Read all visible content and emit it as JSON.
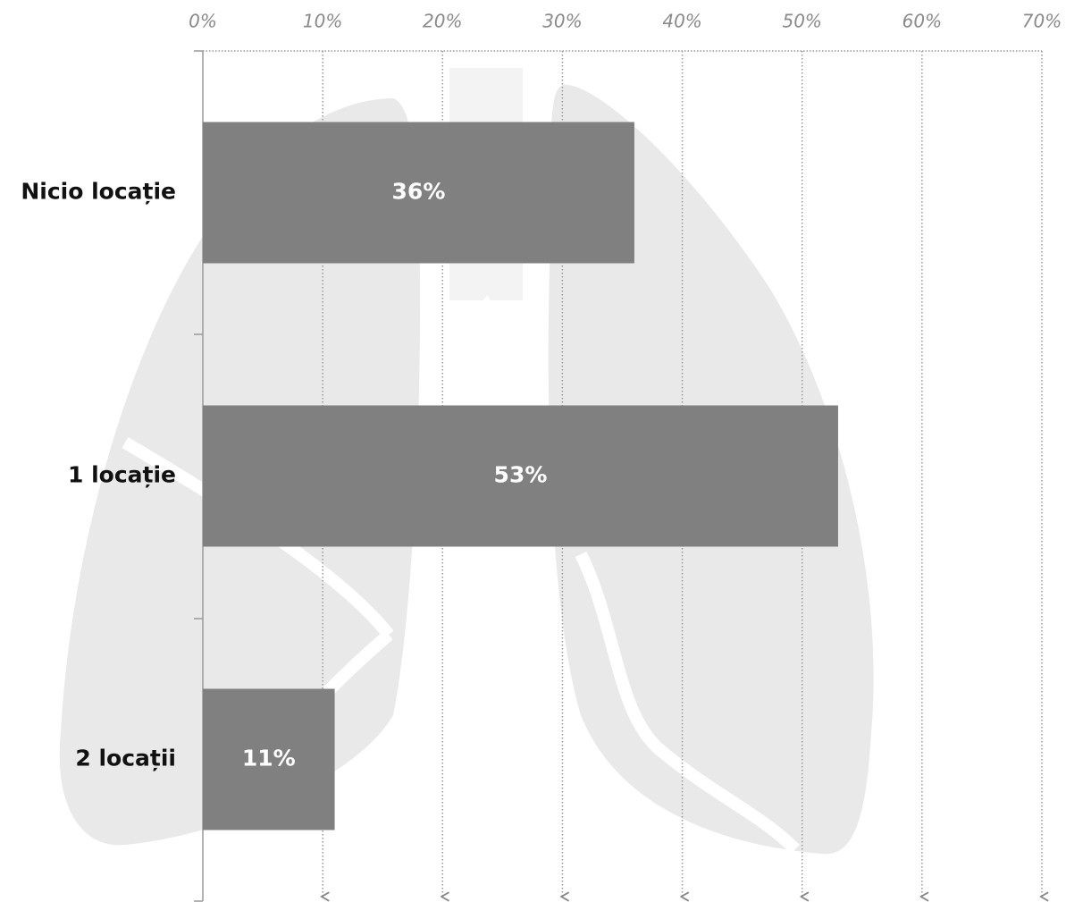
{
  "chart_data": {
    "type": "bar",
    "orientation": "horizontal",
    "categories": [
      "Nicio locație",
      "1 locație",
      "2 locații"
    ],
    "values": [
      36,
      53,
      11
    ],
    "value_labels": [
      "36%",
      "53%",
      "11%"
    ],
    "color": "#808080",
    "xlim": [
      0,
      70
    ],
    "xticks": [
      {
        "value": 0,
        "label": "0%"
      },
      {
        "value": 10,
        "label": "10%"
      },
      {
        "value": 20,
        "label": "20%"
      },
      {
        "value": 30,
        "label": "30%"
      },
      {
        "value": 40,
        "label": "40%"
      },
      {
        "value": 50,
        "label": "50%"
      },
      {
        "value": 60,
        "label": "60%"
      },
      {
        "value": 70,
        "label": "70%"
      }
    ],
    "grid": true
  }
}
